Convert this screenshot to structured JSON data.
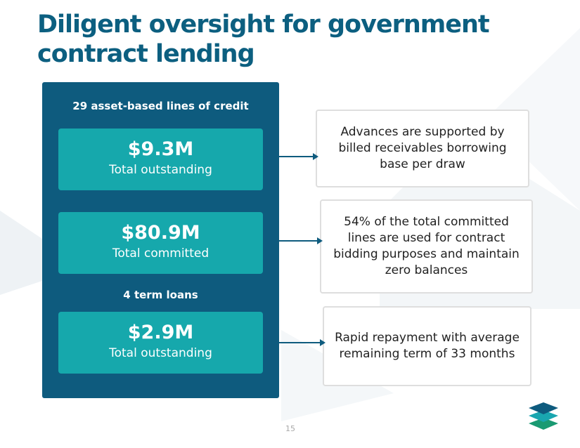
{
  "title": {
    "line1": "Diligent oversight for government",
    "line2": "contract lending"
  },
  "panel": {
    "credit_heading": "29 asset-based lines of credit",
    "term_heading": "4 term loans",
    "cards": [
      {
        "value": "$9.3M",
        "label": "Total outstanding"
      },
      {
        "value": "$80.9M",
        "label": "Total committed"
      },
      {
        "value": "$2.9M",
        "label": "Total outstanding"
      }
    ]
  },
  "notes": [
    "Advances are supported by billed receivables borrowing base per draw",
    "54% of the total committed lines are used for contract bidding purposes and maintain zero balances",
    "Rapid repayment with average remaining term of 33 months"
  ],
  "footer": {
    "page_number": "15"
  },
  "colors": {
    "title": "#0c5f80",
    "panel": "#0e5b7e",
    "card": "#16a8ac",
    "arrow": "#0e5b7e",
    "box_border": "#dedede"
  },
  "icons": {
    "logo": "stacked-layers-logo-icon"
  }
}
